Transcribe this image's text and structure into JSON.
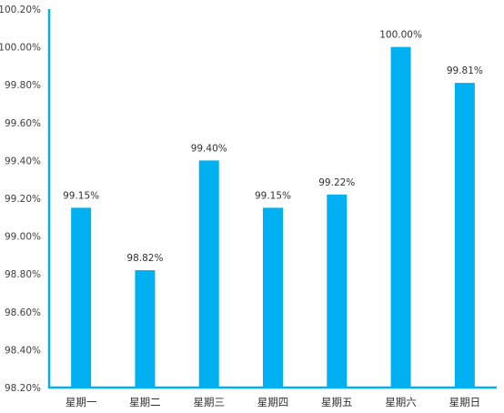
{
  "chart_data": {
    "type": "bar",
    "title": "",
    "xlabel": "",
    "ylabel": "",
    "categories": [
      "星期一",
      "星期二",
      "星期三",
      "星期四",
      "星期五",
      "星期六",
      "星期日"
    ],
    "values": [
      99.15,
      98.82,
      99.4,
      99.15,
      99.22,
      100.0,
      99.81
    ],
    "value_labels": [
      "99.15%",
      "98.82%",
      "99.40%",
      "99.15%",
      "99.22%",
      "100.00%",
      "99.81%"
    ],
    "ylim": [
      98.2,
      100.2
    ],
    "yticks": [
      98.2,
      98.4,
      98.6,
      98.8,
      99.0,
      99.2,
      99.4,
      99.6,
      99.8,
      100.0,
      100.2
    ],
    "ytick_labels": [
      "98.20%",
      "98.40%",
      "98.60%",
      "98.80%",
      "99.00%",
      "99.20%",
      "99.40%",
      "99.60%",
      "99.80%",
      "100.00%",
      "100.20%"
    ],
    "grid": false,
    "legend": "none",
    "colors": {
      "bar": "#00b0f0",
      "axis": "#00b0f0"
    }
  }
}
